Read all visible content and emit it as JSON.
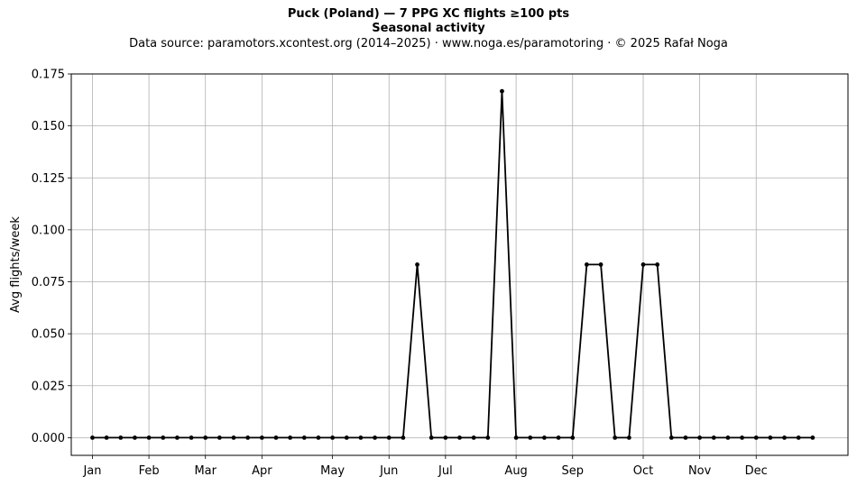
{
  "header": {
    "title": "Puck (Poland)  —  7 PPG XC flights ≥100 pts",
    "subtitle": "Seasonal activity",
    "source_line": "Data source: paramotors.xcontest.org (2014–2025)  ·  www.noga.es/paramotoring  ·  © 2025 Rafał Noga"
  },
  "chart_data": {
    "type": "line",
    "title": "Puck (Poland)  —  7 PPG XC flights ≥100 pts",
    "subtitle": "Seasonal activity",
    "xlabel": "",
    "ylabel": "Avg flights/week",
    "x_unit": "week of year",
    "xlim": [
      -1.5,
      53.5
    ],
    "ylim": [
      -0.0085,
      0.175
    ],
    "yticks": [
      0.0,
      0.025,
      0.05,
      0.075,
      0.1,
      0.125,
      0.15,
      0.175
    ],
    "ytick_labels": [
      "0.000",
      "0.025",
      "0.050",
      "0.075",
      "0.100",
      "0.125",
      "0.150",
      "0.175"
    ],
    "xticks": [
      0,
      4,
      8,
      12,
      17,
      21,
      25,
      30,
      34,
      39,
      43,
      47
    ],
    "xtick_labels": [
      "Jan",
      "Feb",
      "Mar",
      "Apr",
      "May",
      "Jun",
      "Jul",
      "Aug",
      "Sep",
      "Oct",
      "Nov",
      "Dec"
    ],
    "grid": true,
    "line_color": "#000000",
    "series": [
      {
        "x": [
          0,
          1,
          2,
          3,
          4,
          5,
          6,
          7,
          8,
          9,
          10,
          11,
          12,
          13,
          14,
          15,
          16,
          17,
          18,
          19,
          20,
          21,
          22,
          23,
          24,
          25,
          26,
          27,
          28,
          29,
          30,
          31,
          32,
          33,
          34,
          35,
          36,
          37,
          38,
          39,
          40,
          41,
          42,
          43,
          44,
          45,
          46,
          47,
          48,
          49,
          50,
          51
        ],
        "values": [
          0,
          0,
          0,
          0,
          0,
          0,
          0,
          0,
          0,
          0,
          0,
          0,
          0,
          0,
          0,
          0,
          0,
          0,
          0,
          0,
          0,
          0,
          0,
          0.0833,
          0,
          0,
          0,
          0,
          0,
          0.1667,
          0,
          0,
          0,
          0,
          0,
          0.0833,
          0.0833,
          0,
          0,
          0.0833,
          0.0833,
          0,
          0,
          0,
          0,
          0,
          0,
          0,
          0,
          0,
          0,
          0
        ]
      }
    ]
  }
}
